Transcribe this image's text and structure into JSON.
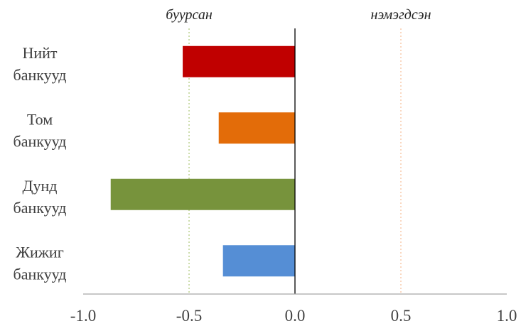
{
  "chart_data": {
    "type": "bar",
    "orientation": "horizontal",
    "categories": [
      [
        "Нийт",
        "банкууд"
      ],
      [
        "Том",
        "банкууд"
      ],
      [
        "Дунд",
        "банкууд"
      ],
      [
        "Жижиг",
        "банкууд"
      ]
    ],
    "values": [
      -0.53,
      -0.36,
      -0.87,
      -0.34
    ],
    "colors": [
      "#c00000",
      "#e36c09",
      "#77933c",
      "#558ed5"
    ],
    "xlim": [
      -1.0,
      1.0
    ],
    "xticks": [
      -1.0,
      -0.5,
      0.0,
      0.5,
      1.0
    ],
    "tick_labels": [
      "-1.0",
      "-0.5",
      "0.0",
      "0.5",
      "1.0"
    ],
    "reference_lines": [
      {
        "x": -0.5,
        "color": "#9bbb59",
        "style": "dotted"
      },
      {
        "x": 0.5,
        "color": "#f4b183",
        "style": "dotted"
      }
    ],
    "zero_line_color": "#000000",
    "axis_line_color": "#a6a6a6",
    "annotations": {
      "left": "буурсан",
      "right": "нэмэгдсэн"
    },
    "title": "",
    "xlabel": "",
    "ylabel": "",
    "legend": "none",
    "grid": false
  }
}
